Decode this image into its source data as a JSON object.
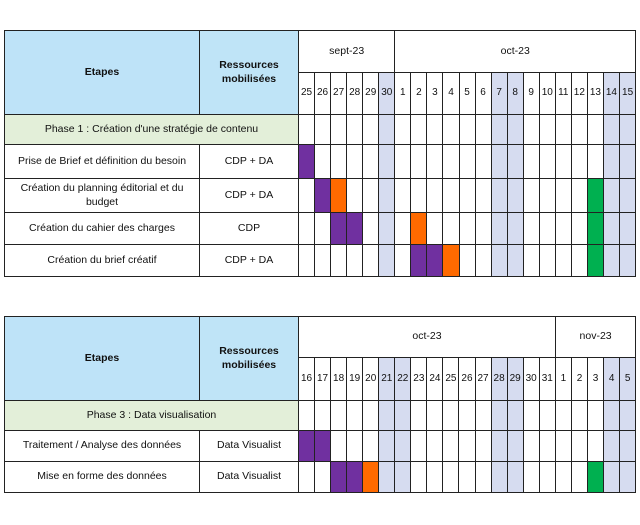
{
  "colors": {
    "header_bg": "#bee3f8",
    "phase_bg": "#e3efd9",
    "weekend_bg": "#d6dcf0",
    "purple": "#7030a0",
    "orange": "#ff6a00",
    "green": "#00b050"
  },
  "tables": [
    {
      "header": {
        "etapes": "Etapes",
        "ressources": "Ressources mobilisées"
      },
      "months": [
        {
          "label": "sept-23",
          "span": 6
        },
        {
          "label": "oct-23",
          "span": 15
        }
      ],
      "days": [
        "25",
        "26",
        "27",
        "28",
        "29",
        "30",
        "1",
        "2",
        "3",
        "4",
        "5",
        "6",
        "7",
        "8",
        "9",
        "10",
        "11",
        "12",
        "13",
        "14",
        "15"
      ],
      "weekend_indices": [
        5,
        12,
        13,
        19,
        20
      ],
      "phase": "Phase 1 : Création d'une stratégie de contenu",
      "tasks": [
        {
          "name": "Prise de Brief et définition du besoin",
          "resource": "CDP + DA",
          "bars": {
            "0": "purple"
          }
        },
        {
          "name": "Création du planning éditorial et du budget",
          "resource": "CDP + DA",
          "bars": {
            "1": "purple",
            "2": "orange",
            "18": "green"
          }
        },
        {
          "name": "Création du cahier des charges",
          "resource": "CDP",
          "bars": {
            "2": "purple",
            "3": "purple",
            "7": "orange",
            "18": "green"
          }
        },
        {
          "name": "Création du brief créatif",
          "resource": "CDP + DA",
          "bars": {
            "7": "purple",
            "8": "purple",
            "9": "orange",
            "18": "green"
          }
        }
      ]
    },
    {
      "header": {
        "etapes": "Etapes",
        "ressources": "Ressources mobilisées"
      },
      "months": [
        {
          "label": "oct-23",
          "span": 16
        },
        {
          "label": "nov-23",
          "span": 5
        }
      ],
      "days": [
        "16",
        "17",
        "18",
        "19",
        "20",
        "21",
        "22",
        "23",
        "24",
        "25",
        "26",
        "27",
        "28",
        "29",
        "30",
        "31",
        "1",
        "2",
        "3",
        "4",
        "5"
      ],
      "weekend_indices": [
        5,
        6,
        12,
        13,
        19,
        20
      ],
      "phase": "Phase 3 : Data visualisation",
      "tasks": [
        {
          "name": "Traitement / Analyse des données",
          "resource": "Data Visualist",
          "bars": {
            "0": "purple",
            "1": "purple"
          }
        },
        {
          "name": "Mise en forme des données",
          "resource": "Data Visualist",
          "bars": {
            "2": "purple",
            "3": "purple",
            "4": "orange",
            "18": "green"
          }
        }
      ]
    }
  ]
}
